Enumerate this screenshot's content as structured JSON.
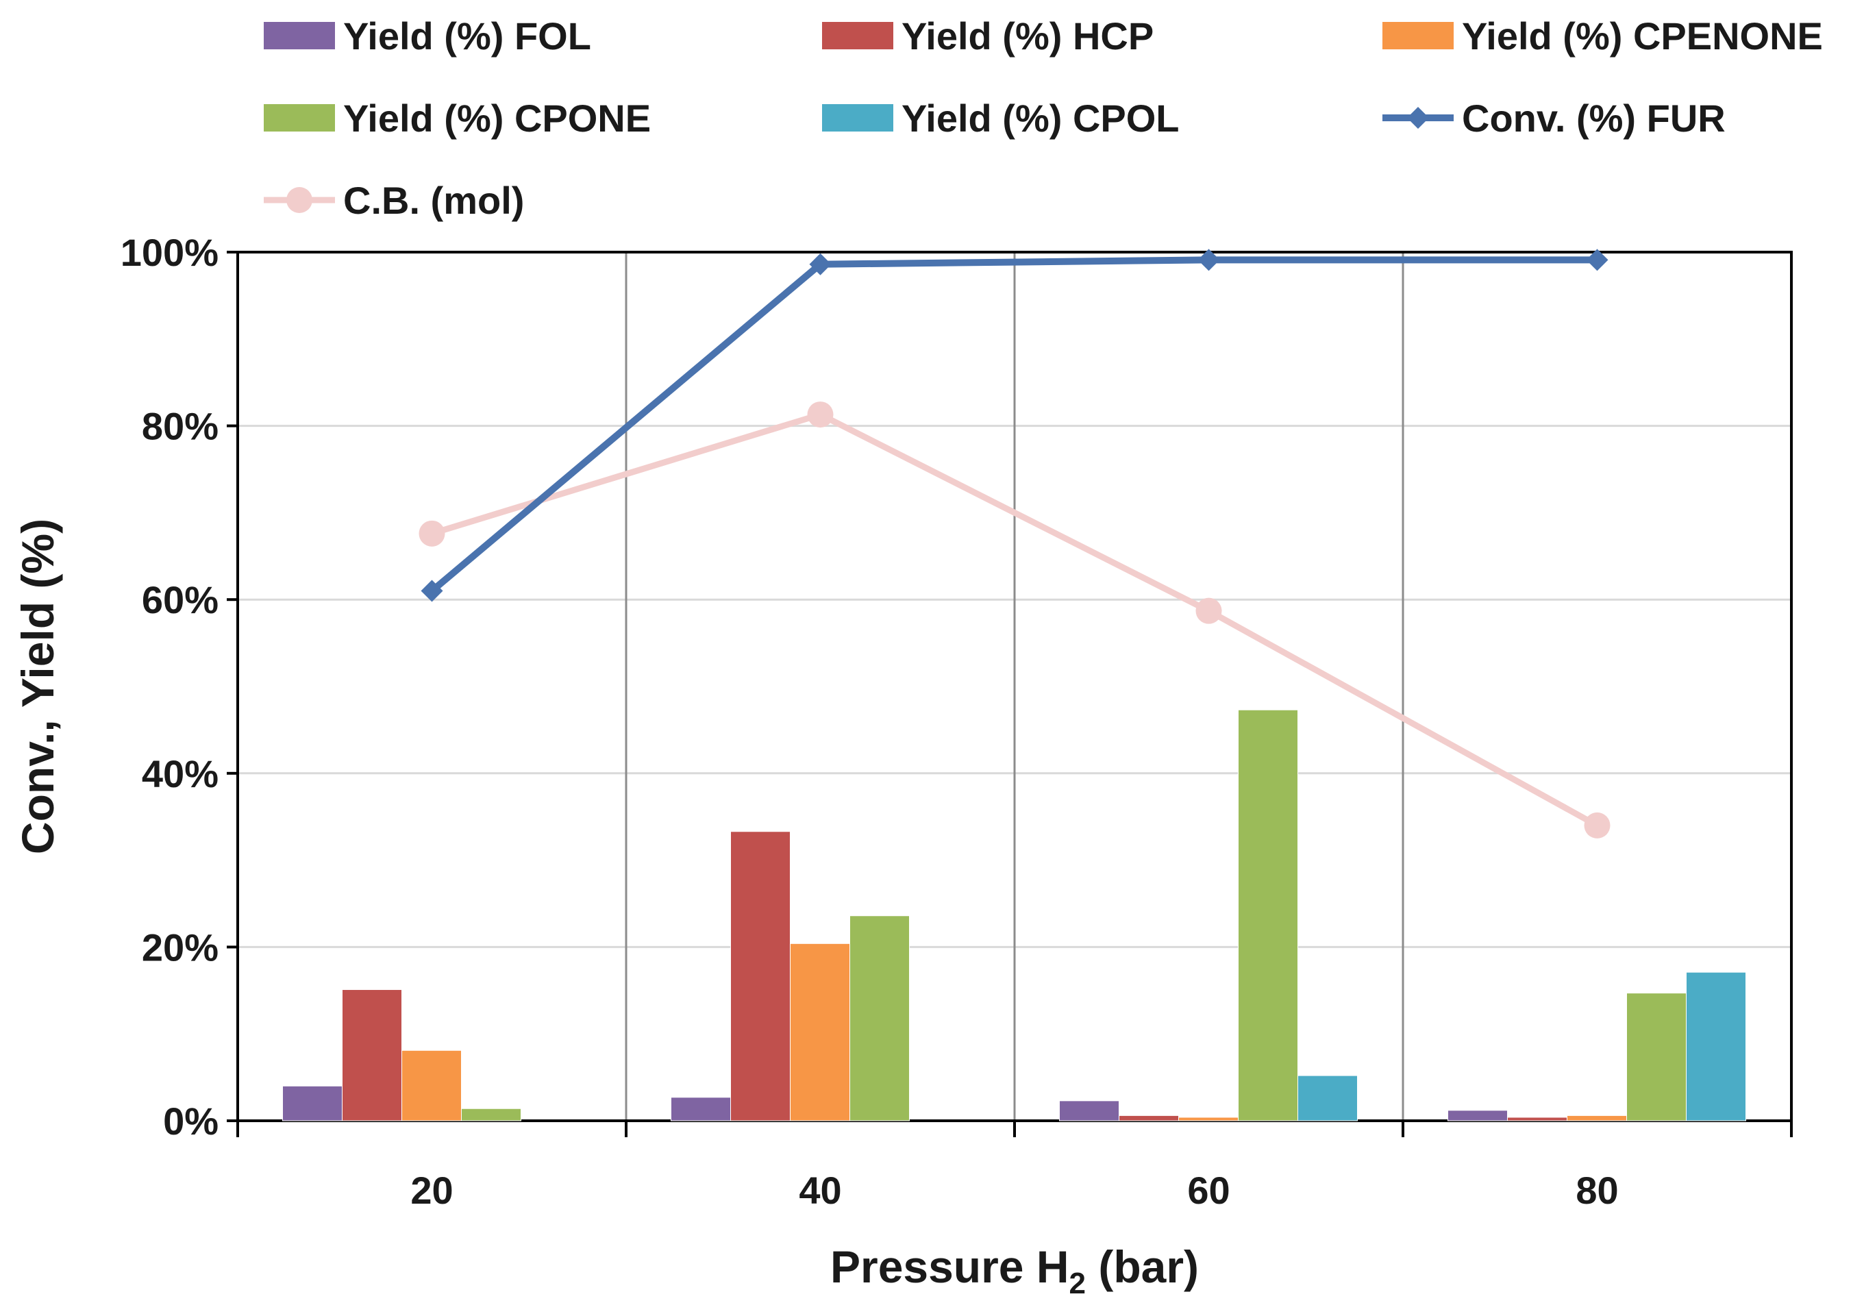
{
  "chart_data": {
    "type": "bar",
    "title": "",
    "categories": [
      "20",
      "40",
      "60",
      "80"
    ],
    "xlabel": {
      "main": "Pressure H",
      "sub": "2",
      "unit": " (bar)"
    },
    "ylabel": "Conv., Yield (%)",
    "ylim": [
      0,
      100
    ],
    "y_ticks": [
      "0%",
      "20%",
      "40%",
      "60%",
      "80%",
      "100%"
    ],
    "series": [
      {
        "name": "Yield (%) FOL",
        "kind": "bar",
        "color": "#7F64A2",
        "values": [
          4.0,
          2.7,
          2.3,
          1.2
        ]
      },
      {
        "name": "Yield (%) HCP",
        "kind": "bar",
        "color": "#C0504D",
        "values": [
          15.1,
          33.3,
          0.6,
          0.4
        ]
      },
      {
        "name": "Yield (%) CPENONE",
        "kind": "bar",
        "color": "#F79646",
        "values": [
          8.1,
          20.4,
          0.4,
          0.6
        ]
      },
      {
        "name": "Yield (%) CPONE",
        "kind": "bar",
        "color": "#9BBB59",
        "values": [
          1.4,
          23.6,
          47.3,
          14.7
        ]
      },
      {
        "name": "Yield (%) CPOL",
        "kind": "bar",
        "color": "#4BACC6",
        "values": [
          0,
          0,
          5.2,
          17.1
        ]
      },
      {
        "name": "Conv. (%) FUR",
        "kind": "line",
        "marker": "diamond",
        "color": "#4A73AE",
        "values": [
          61.0,
          98.6,
          99.1,
          99.1
        ]
      },
      {
        "name": "C.B. (mol)",
        "kind": "line",
        "marker": "circle",
        "color": "#F2CDCC",
        "values": [
          67.6,
          81.3,
          58.7,
          34.0
        ]
      }
    ],
    "grid": {
      "vertical_separators": true,
      "horizontal": true
    },
    "legend_position": "top"
  }
}
